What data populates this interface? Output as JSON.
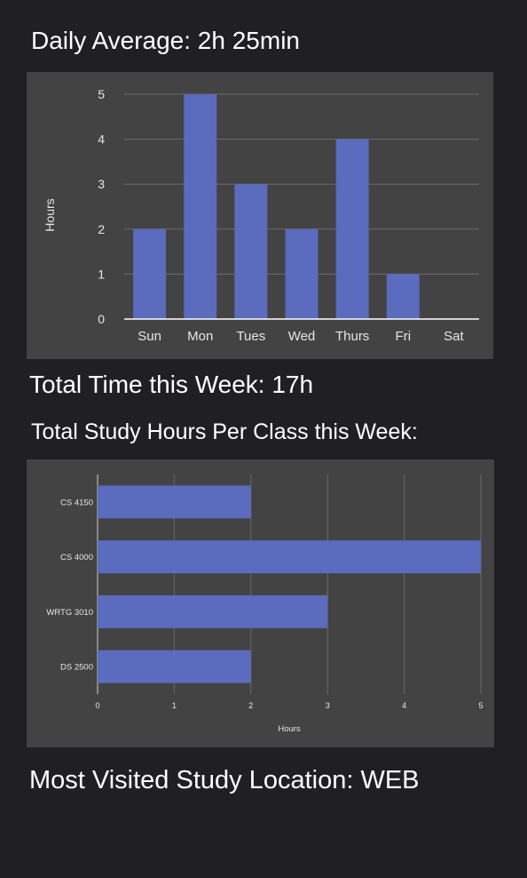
{
  "headings": {
    "daily_average": "Daily Average: 2h 25min",
    "total_time": "Total Time this Week: 17h",
    "per_class": "Total Study Hours Per Class this Week:",
    "location": "Most Visited Study Location: WEB"
  },
  "colors": {
    "background": "#202023",
    "panel": "#434343",
    "bar": "#5b6bbd",
    "grid": "#6a6a6a",
    "text": "#ffffff"
  },
  "chart_data": [
    {
      "type": "bar",
      "orientation": "vertical",
      "categories": [
        "Sun",
        "Mon",
        "Tues",
        "Wed",
        "Thurs",
        "Fri",
        "Sat"
      ],
      "values": [
        2,
        5,
        3,
        2,
        4,
        1,
        0
      ],
      "ylabel": "Hours",
      "ylim": [
        0,
        5
      ],
      "yticks": [
        0,
        1,
        2,
        3,
        4,
        5
      ],
      "grid": true
    },
    {
      "type": "bar",
      "orientation": "horizontal",
      "categories": [
        "CS 4150",
        "CS 4000",
        "WRTG 3010",
        "DS 2500"
      ],
      "values": [
        2,
        5,
        3,
        2
      ],
      "xlabel": "Hours",
      "xlim": [
        0,
        5
      ],
      "xticks": [
        0,
        1,
        2,
        3,
        4,
        5
      ],
      "grid": true
    }
  ]
}
